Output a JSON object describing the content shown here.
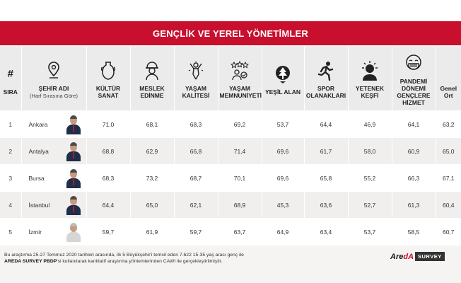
{
  "title": "GENÇLİK VE YEREL YÖNETİMLER",
  "columns": {
    "rank": "SIRA",
    "rank_symbol": "#",
    "city": "ŞEHİR ADI",
    "city_sub": "(Harf Sırasına Göre)",
    "kultur": "KÜLTÜR SANAT",
    "meslek": "MESLEK EDİNME",
    "kalite": "YAŞAM KALİTESİ",
    "memnuniyet": "YAŞAM MEMNUNİYETİ",
    "yesil": "YEŞİL ALAN",
    "spor": "SPOR OLANAKLARI",
    "yetenek": "YETENEK KEŞFİ",
    "pandemi": "PANDEMİ DÖNEMİ GENÇLERE HİZMET",
    "genel": "Genel Ort"
  },
  "rows": [
    {
      "rank": "1",
      "city": "Ankara",
      "kultur": "71,0",
      "meslek": "68,1",
      "kalite": "68,3",
      "memnuniyet": "69,2",
      "yesil": "53,7",
      "spor": "64,4",
      "yetenek": "46,9",
      "pandemi": "64,1",
      "genel": "63,2"
    },
    {
      "rank": "2",
      "city": "Antalya",
      "kultur": "68,8",
      "meslek": "62,9",
      "kalite": "66,8",
      "memnuniyet": "71,4",
      "yesil": "69,6",
      "spor": "61,7",
      "yetenek": "58,0",
      "pandemi": "60,9",
      "genel": "65,0"
    },
    {
      "rank": "3",
      "city": "Bursa",
      "kultur": "68,3",
      "meslek": "73,2",
      "kalite": "68,7",
      "memnuniyet": "70,1",
      "yesil": "69,6",
      "spor": "65,8",
      "yetenek": "55,2",
      "pandemi": "66,3",
      "genel": "67,1"
    },
    {
      "rank": "4",
      "city": "İstanbul",
      "kultur": "64,4",
      "meslek": "65,0",
      "kalite": "62,1",
      "memnuniyet": "68,9",
      "yesil": "45,3",
      "spor": "63,6",
      "yetenek": "52,7",
      "pandemi": "61,3",
      "genel": "60,4"
    },
    {
      "rank": "5",
      "city": "İzmir",
      "kultur": "59,7",
      "meslek": "61,9",
      "kalite": "59,7",
      "memnuniyet": "63,7",
      "yesil": "64,9",
      "spor": "63,4",
      "yetenek": "53,7",
      "pandemi": "58,5",
      "genel": "60,7"
    }
  ],
  "footnote": {
    "line1": "Bu araştırma 25-27 Temmuz 2020 tarihleri arasında, ilk 5 Büyükşehir'i temsil eden 7.622 15-35 yaş arası genç ile",
    "brand": "AREDA SURVEY PBDP",
    "line2": "'si kullanılarak kantitatif araştırma yöntemlerinden CAWI ile gerçekleştirilmiştir."
  },
  "logo": {
    "part1": "Are",
    "part2": "dA",
    "survey": "SURVEY"
  },
  "colors": {
    "accent": "#c8102e",
    "header_bg": "#ebebeb",
    "row_alt": "#f0efed"
  }
}
